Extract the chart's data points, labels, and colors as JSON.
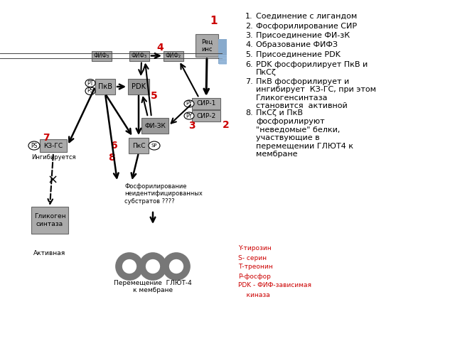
{
  "background_color": "#ffffff",
  "box_fill": "#aaaaaa",
  "box_fill_dark": "#888888",
  "box_edge": "#666666",
  "red_color": "#cc0000",
  "list_items": [
    "Соединение с лигандом",
    "Фосфорилирование СИР",
    "Присоединение ФИ-зК",
    "Образование ФИФЗ",
    "Присоединение PDK",
    "PDK фосфорилирует ПкВ и\nПкСζ",
    "ПкВ фосфорилирует и\nингибирует  КЗ-ГС, при этом\nГликогенсинтаза\nстановится  активной",
    "ПкСζ и ПкВ\nфосфорилируют\n\"неведомые\" белки,\nучаствующие в\nперемещении ГЛЮТ4 к\nмембране"
  ],
  "legend_items": [
    "Y-тирозин",
    "S- серин",
    "Т-треонин",
    "Р-фосфор",
    "PDK - ФИФ-зависимая",
    "    киназа"
  ]
}
